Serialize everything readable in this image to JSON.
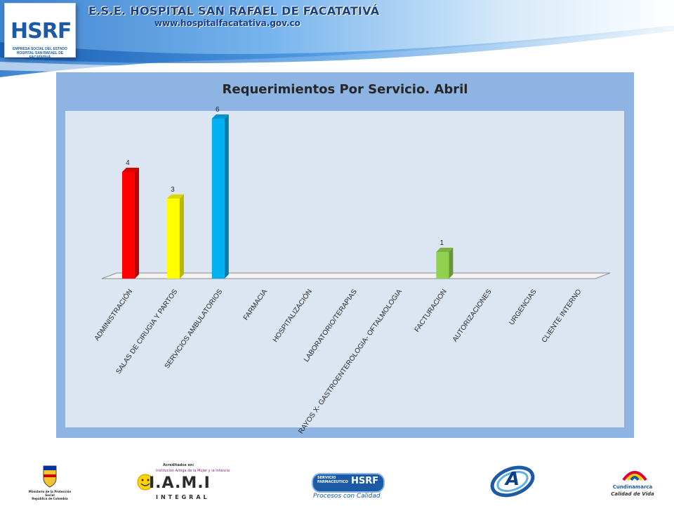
{
  "header": {
    "title": "E.S.E. HOSPITAL SAN RAFAEL DE FACATATIVÁ",
    "url": "www.hospitalfacatativa.gov.co",
    "logo_text": "HSRF",
    "logo_subtitle_1": "EMPRESA SOCIAL DEL ESTADO",
    "logo_subtitle_2": "HOSPITAL SAN RAFAEL DE FACATATIVÁ"
  },
  "chart_data": {
    "type": "bar",
    "title": "Requerimientos Por Servicio. Abril",
    "categories": [
      "ADMINISTRACIÓN",
      "SALAS DE CIRUGIA Y PARTOS",
      "SERVICIOS AMBULATORIOS",
      "FARMACIA",
      "HOSPITALIZACIÓN",
      "LABORATORIO/TERAPIAS",
      "RAYOS X- GASTROENTEROLOGIA- OFTALMOLOGIA",
      "FACTURACION",
      "AUTORIZACIONES",
      "URGENCIAS",
      "CLIENTE INTERNO"
    ],
    "values": [
      4,
      3,
      6,
      0,
      0,
      0,
      0,
      1,
      0,
      0,
      0
    ],
    "data_labels": [
      "4",
      "3",
      "6",
      "",
      "",
      "",
      "",
      "1",
      "",
      "",
      ""
    ],
    "bar_colors": [
      "#ff0000",
      "#ffff00",
      "#00b0f0",
      "#00b0f0",
      "#00b0f0",
      "#00b0f0",
      "#00b0f0",
      "#92d050",
      "#92d050",
      "#92d050",
      "#92d050"
    ],
    "ylim": [
      0,
      6
    ],
    "grid": false,
    "legend": "none",
    "style": "3d-columns"
  },
  "colors": {
    "panel_background": "#8eb4e3",
    "plot_background": "#dce6f2",
    "title_color": "#1c3f8a"
  },
  "footer": {
    "logos": [
      {
        "name": "ministerio-proteccion-social",
        "text_1": "Ministerio de la Protección Social",
        "text_2": "República de Colombia"
      },
      {
        "name": "iami-integral",
        "text_1": "Acreditados en:",
        "text_2": "Institución Amiga de la Mujer y la Infancia",
        "text_3": "I.A.M.I",
        "text_4": "INTEGRAL"
      },
      {
        "name": "servicio-farmaceutico",
        "text_1": "SERVICIO FARMACEUTICO",
        "text_2": "HSRF",
        "text_3": "Procesos con Calidad"
      },
      {
        "name": "acreditacion",
        "text_1": "A"
      },
      {
        "name": "cundinamarca",
        "text_1": "Cundinamarca",
        "text_2": "Calidad de Vida"
      }
    ]
  }
}
